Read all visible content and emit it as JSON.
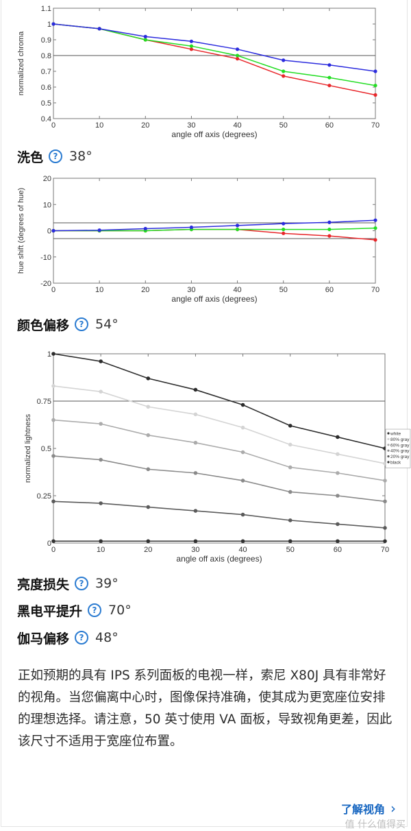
{
  "charts_text": {},
  "chart_data": [
    {
      "type": "line",
      "ylabel": "normalized chroma",
      "xlabel": "angle off axis (degrees)",
      "x": [
        0,
        10,
        20,
        30,
        40,
        50,
        60,
        70
      ],
      "xticks": [
        "0",
        "10",
        "20",
        "30",
        "40",
        "50",
        "60",
        "70"
      ],
      "ylim": [
        0.4,
        1.1
      ],
      "yticks": [
        "0.4",
        "0.5",
        "0.6",
        "0.7",
        "0.8",
        "0.9",
        "1",
        "1.1"
      ],
      "ytick_values": [
        0.4,
        0.5,
        0.6,
        0.7,
        0.8,
        0.9,
        1.0,
        1.1
      ],
      "reference_line": 0.8,
      "series": [
        {
          "color": "#e8262a",
          "values": [
            1.0,
            0.97,
            0.9,
            0.84,
            0.78,
            0.67,
            0.61,
            0.55
          ]
        },
        {
          "color": "#22dd22",
          "values": [
            1.0,
            0.97,
            0.9,
            0.86,
            0.8,
            0.7,
            0.66,
            0.61
          ]
        },
        {
          "color": "#2b2bde",
          "values": [
            1.0,
            0.97,
            0.92,
            0.89,
            0.84,
            0.77,
            0.74,
            0.7
          ]
        }
      ]
    },
    {
      "type": "line",
      "ylabel": "hue shift (degrees of hue)",
      "xlabel": "angle off axis (degrees)",
      "x": [
        0,
        10,
        20,
        30,
        40,
        50,
        60,
        70
      ],
      "xticks": [
        "0",
        "10",
        "20",
        "30",
        "40",
        "50",
        "60",
        "70"
      ],
      "ylim": [
        -20,
        20
      ],
      "yticks": [
        "-20",
        "-10",
        "0",
        "10",
        "20"
      ],
      "ytick_values": [
        -20,
        -10,
        0,
        10,
        20
      ],
      "reference_lines": [
        3,
        -3
      ],
      "series": [
        {
          "color": "#e8262a",
          "values": [
            0,
            0,
            0,
            0.5,
            0.5,
            -1,
            -2,
            -3.5
          ]
        },
        {
          "color": "#22dd22",
          "values": [
            0,
            0,
            0,
            0.5,
            0.5,
            0.5,
            0.5,
            1
          ]
        },
        {
          "color": "#2b2bde",
          "values": [
            0,
            0.2,
            0.8,
            1.3,
            2,
            2.7,
            3.2,
            4
          ]
        }
      ]
    },
    {
      "type": "line",
      "ylabel": "normalized lightness",
      "xlabel": "angle off axis (degrees)",
      "x": [
        0,
        10,
        20,
        30,
        40,
        50,
        60,
        70
      ],
      "xticks": [
        "0",
        "10",
        "20",
        "30",
        "40",
        "50",
        "60",
        "70"
      ],
      "ylim": [
        0,
        1
      ],
      "yticks": [
        "0",
        "0.25",
        "0.5",
        "0.75",
        "1"
      ],
      "ytick_values": [
        0,
        0.25,
        0.5,
        0.75,
        1
      ],
      "reference_line": 0.75,
      "legend_position": "right",
      "series": [
        {
          "name": "white",
          "color": "#2c2c2c",
          "values": [
            1.0,
            0.96,
            0.87,
            0.81,
            0.73,
            0.62,
            0.56,
            0.5
          ]
        },
        {
          "name": "80% gray",
          "color": "#d4d4d4",
          "values": [
            0.83,
            0.8,
            0.72,
            0.68,
            0.61,
            0.52,
            0.47,
            0.42
          ]
        },
        {
          "name": "60% gray",
          "color": "#ababab",
          "values": [
            0.65,
            0.63,
            0.57,
            0.53,
            0.48,
            0.4,
            0.37,
            0.33
          ]
        },
        {
          "name": "40% gray",
          "color": "#8a8a8a",
          "values": [
            0.46,
            0.44,
            0.39,
            0.37,
            0.33,
            0.27,
            0.25,
            0.22
          ]
        },
        {
          "name": "20% gray",
          "color": "#5b5b5b",
          "values": [
            0.22,
            0.21,
            0.19,
            0.17,
            0.15,
            0.12,
            0.1,
            0.08
          ]
        },
        {
          "name": "black",
          "color": "#333333",
          "values": [
            0.01,
            0.01,
            0.01,
            0.01,
            0.01,
            0.01,
            0.01,
            0.01
          ]
        }
      ]
    }
  ],
  "metrics": [
    {
      "label": "洗色",
      "value": "38°"
    },
    {
      "label": "颜色偏移",
      "value": "54°"
    },
    {
      "label": "亮度损失",
      "value": "39°"
    },
    {
      "label": "黑电平提升",
      "value": "70°"
    },
    {
      "label": "伽马偏移",
      "value": "48°"
    }
  ],
  "help_icon_glyph": "?",
  "paragraph": "正如预期的具有 IPS 系列面板的电视一样，索尼 X80J 具有非常好的视角。当您偏离中心时，图像保持准确，使其成为更宽座位安排的理想选择。请注意，50 英寸使用 VA 面板，导致视角更差，因此该尺寸不适用于宽座位布置。",
  "learn_more": {
    "label": "了解视角",
    "chevron": "›"
  },
  "watermark": "值 什么值得买",
  "colors": {
    "link": "#1565c0",
    "help_icon": "#2a7bd1"
  }
}
